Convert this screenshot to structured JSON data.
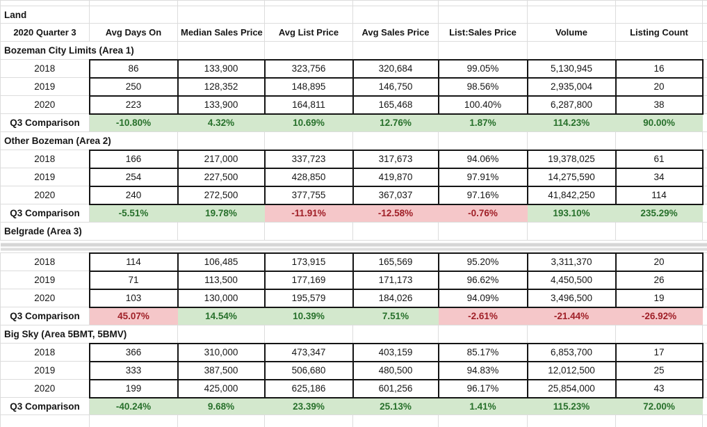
{
  "sheet": {
    "label": "Land",
    "header": {
      "quarter_label": "2020 Quarter 3",
      "columns": [
        "Avg Days On",
        "Median Sales Price",
        "Avg List Price",
        "Avg Sales Price",
        "List:Sales Price",
        "Volume",
        "Listing Count"
      ]
    },
    "comparison_label": "Q3 Comparison",
    "colors": {
      "good_bg": "#d3e8cd",
      "good_text": "#27702b",
      "bad_bg": "#f5c7c9",
      "bad_text": "#a02028",
      "gridline": "#dcdcdc",
      "data_border": "#141414",
      "split_bar": "#d6d6d6"
    },
    "sections": [
      {
        "title": "Bozeman City Limits (Area 1)",
        "split_after_title": false,
        "years": [
          {
            "label": "2018",
            "cells": [
              "86",
              "133,900",
              "323,756",
              "320,684",
              "99.05%",
              "5,130,945",
              "16"
            ]
          },
          {
            "label": "2019",
            "cells": [
              "250",
              "128,352",
              "148,895",
              "146,750",
              "98.56%",
              "2,935,004",
              "20"
            ]
          },
          {
            "label": "2020",
            "cells": [
              "223",
              "133,900",
              "164,811",
              "165,468",
              "100.40%",
              "6,287,800",
              "38"
            ]
          }
        ],
        "comparison": {
          "cells": [
            {
              "text": "-10.80%",
              "status": "good"
            },
            {
              "text": "4.32%",
              "status": "good"
            },
            {
              "text": "10.69%",
              "status": "good"
            },
            {
              "text": "12.76%",
              "status": "good"
            },
            {
              "text": "1.87%",
              "status": "good"
            },
            {
              "text": "114.23%",
              "status": "good"
            },
            {
              "text": "90.00%",
              "status": "good"
            }
          ]
        }
      },
      {
        "title": "Other Bozeman (Area 2)",
        "split_after_title": false,
        "years": [
          {
            "label": "2018",
            "cells": [
              "166",
              "217,000",
              "337,723",
              "317,673",
              "94.06%",
              "19,378,025",
              "61"
            ]
          },
          {
            "label": "2019",
            "cells": [
              "254",
              "227,500",
              "428,850",
              "419,870",
              "97.91%",
              "14,275,590",
              "34"
            ]
          },
          {
            "label": "2020",
            "cells": [
              "240",
              "272,500",
              "377,755",
              "367,037",
              "97.16%",
              "41,842,250",
              "114"
            ]
          }
        ],
        "comparison": {
          "cells": [
            {
              "text": "-5.51%",
              "status": "good"
            },
            {
              "text": "19.78%",
              "status": "good"
            },
            {
              "text": "-11.91%",
              "status": "bad"
            },
            {
              "text": "-12.58%",
              "status": "bad"
            },
            {
              "text": "-0.76%",
              "status": "bad"
            },
            {
              "text": "193.10%",
              "status": "good"
            },
            {
              "text": "235.29%",
              "status": "good"
            }
          ]
        }
      },
      {
        "title": "Belgrade (Area 3)",
        "split_after_title": true,
        "years": [
          {
            "label": "2018",
            "cells": [
              "114",
              "106,485",
              "173,915",
              "165,569",
              "95.20%",
              "3,311,370",
              "20"
            ]
          },
          {
            "label": "2019",
            "cells": [
              "71",
              "113,500",
              "177,169",
              "171,173",
              "96.62%",
              "4,450,500",
              "26"
            ]
          },
          {
            "label": "2020",
            "cells": [
              "103",
              "130,000",
              "195,579",
              "184,026",
              "94.09%",
              "3,496,500",
              "19"
            ]
          }
        ],
        "comparison": {
          "cells": [
            {
              "text": "45.07%",
              "status": "bad"
            },
            {
              "text": "14.54%",
              "status": "good"
            },
            {
              "text": "10.39%",
              "status": "good"
            },
            {
              "text": "7.51%",
              "status": "good"
            },
            {
              "text": "-2.61%",
              "status": "bad"
            },
            {
              "text": "-21.44%",
              "status": "bad"
            },
            {
              "text": "-26.92%",
              "status": "bad"
            }
          ]
        }
      },
      {
        "title": "Big Sky (Area 5BMT, 5BMV)",
        "split_after_title": false,
        "years": [
          {
            "label": "2018",
            "cells": [
              "366",
              "310,000",
              "473,347",
              "403,159",
              "85.17%",
              "6,853,700",
              "17"
            ]
          },
          {
            "label": "2019",
            "cells": [
              "333",
              "387,500",
              "506,680",
              "480,500",
              "94.83%",
              "12,012,500",
              "25"
            ]
          },
          {
            "label": "2020",
            "cells": [
              "199",
              "425,000",
              "625,186",
              "601,256",
              "96.17%",
              "25,854,000",
              "43"
            ]
          }
        ],
        "comparison": {
          "cells": [
            {
              "text": "-40.24%",
              "status": "good"
            },
            {
              "text": "9.68%",
              "status": "good"
            },
            {
              "text": "23.39%",
              "status": "good"
            },
            {
              "text": "25.13%",
              "status": "good"
            },
            {
              "text": "1.41%",
              "status": "good"
            },
            {
              "text": "115.23%",
              "status": "good"
            },
            {
              "text": "72.00%",
              "status": "good"
            }
          ]
        }
      }
    ]
  }
}
